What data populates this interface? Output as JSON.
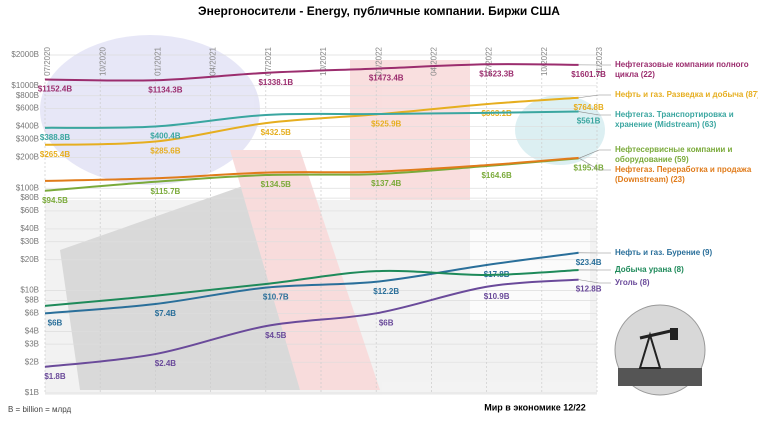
{
  "chart_data": {
    "type": "line",
    "title": "Энергоносители - Energy, публичные компании. Биржи США",
    "x": [
      "07/2020",
      "01/2021",
      "07/2021",
      "01/2022",
      "07/2022",
      "12/2022"
    ],
    "xticks": [
      "07/2020",
      "10/2020",
      "01/2021",
      "04/2021",
      "07/2021",
      "10/2021",
      "01/2022",
      "04/2022",
      "07/2022",
      "10/2022",
      "01/2023"
    ],
    "log_scale": true,
    "grid": true,
    "ylim": [
      1,
      2000
    ],
    "yticks": [
      {
        "value": 2000,
        "label": "$2000B"
      },
      {
        "value": 1000,
        "label": "$1000B"
      },
      {
        "value": 800,
        "label": "$800B"
      },
      {
        "value": 600,
        "label": "$600B"
      },
      {
        "value": 400,
        "label": "$400B"
      },
      {
        "value": 300,
        "label": "$300B"
      },
      {
        "value": 200,
        "label": "$200B"
      },
      {
        "value": 100,
        "label": "$100B"
      },
      {
        "value": 80,
        "label": "$80B"
      },
      {
        "value": 60,
        "label": "$60B"
      },
      {
        "value": 40,
        "label": "$40B"
      },
      {
        "value": 30,
        "label": "$30B"
      },
      {
        "value": 20,
        "label": "$20B"
      },
      {
        "value": 10,
        "label": "$10B"
      },
      {
        "value": 8,
        "label": "$8B"
      },
      {
        "value": 6,
        "label": "$6B"
      },
      {
        "value": 4,
        "label": "$4B"
      },
      {
        "value": 3,
        "label": "$3B"
      },
      {
        "value": 2,
        "label": "$2B"
      },
      {
        "value": 1,
        "label": "$1B"
      }
    ],
    "series": [
      {
        "name": "Нефтегазовые компании полного цикла (22)",
        "color": "#9b2d6e",
        "values": [
          1152.4,
          1134.3,
          1338.1,
          1473.4,
          1623.3,
          1601.7
        ],
        "value_labels": [
          "$1152.4B",
          "$1134.3B",
          "$1338.1B",
          "$1473.4B",
          "$1623.3B",
          "$1601.7B"
        ]
      },
      {
        "name": "Нефть и газ. Разведка и добыча (87)",
        "color": "#e6ae1f",
        "values": [
          265.4,
          285.6,
          432.5,
          525.9,
          663.1,
          764.8
        ],
        "value_labels": [
          "$265.4B",
          "$285.6B",
          "$432.5B",
          "$525.9B",
          "$663.1B",
          "$764.8B"
        ]
      },
      {
        "name": "Нефтегаз. Транспортировка и хранение (Midstream) (63)",
        "color": "#3aa6a0",
        "values": [
          388.8,
          400.4,
          519,
          530,
          545,
          561
        ],
        "value_labels": [
          "$388.8B",
          "$400.4B",
          null,
          null,
          null,
          "$561B"
        ]
      },
      {
        "name": "Нефтесервисные компании и оборудование (59)",
        "color": "#7aaa3a",
        "values": [
          94.5,
          115.7,
          134.5,
          137.4,
          164.6,
          195.4
        ],
        "value_labels": [
          "$94.5B",
          "$115.7B",
          "$134.5B",
          "$137.4B",
          "$164.6B",
          "$195.4B"
        ]
      },
      {
        "name": "Нефтегаз. Переработка и продажа (Downstream) (23)",
        "color": "#e07b1a",
        "values": [
          118,
          125,
          142,
          145,
          168,
          198
        ],
        "value_labels": [
          null,
          null,
          null,
          null,
          null,
          null
        ]
      },
      {
        "name": "Нефть и газ. Бурение (9)",
        "color": "#2a6f9a",
        "values": [
          6,
          7.4,
          10.7,
          12.2,
          17.8,
          23.4
        ],
        "value_labels": [
          "$6B",
          "$7.4B",
          "$10.7B",
          "$12.2B",
          "$17.8B",
          "$23.4B"
        ]
      },
      {
        "name": "Добыча урана (8)",
        "color": "#1e8a5a",
        "values": [
          7.1,
          8.9,
          11.6,
          15.5,
          14.2,
          15.9
        ],
        "value_labels": [
          null,
          null,
          null,
          null,
          null,
          null
        ]
      },
      {
        "name": "Уголь (8)",
        "color": "#6a4a9a",
        "values": [
          1.8,
          2.4,
          4.5,
          6,
          10.9,
          12.8
        ],
        "value_labels": [
          "$1.8B",
          "$2.4B",
          "$4.5B",
          "$6B",
          "$10.9B",
          "$12.8B"
        ]
      }
    ],
    "footnote": "B = billion = млрд",
    "source": "Мир в экономике 12/22"
  }
}
